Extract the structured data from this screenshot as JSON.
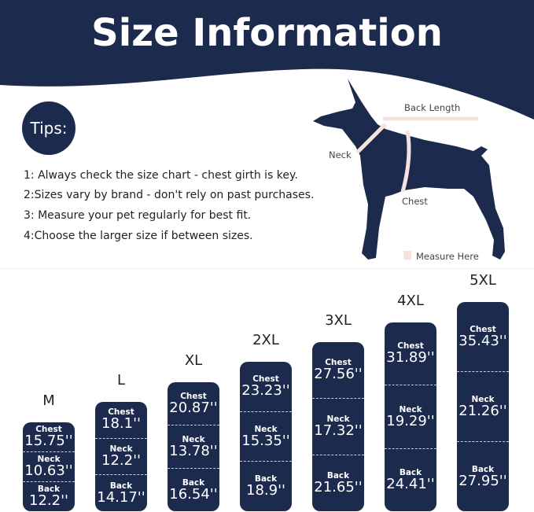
{
  "title": "Size Information",
  "tips": {
    "heading": "Tips:",
    "items": [
      "1: Always check the size chart - chest girth is key.",
      "2:Sizes vary by brand - don't rely on past purchases.",
      "3: Measure your pet regularly for best fit.",
      "4:Choose the larger size if between sizes."
    ]
  },
  "diagram": {
    "back_length": "Back Length",
    "neck": "Neck",
    "chest": "Chest",
    "legend": "Measure Here"
  },
  "colors": {
    "navy": "#1c2a4e",
    "measure": "#f6e2dc"
  },
  "measure_labels": {
    "chest": "Chest",
    "neck": "Neck",
    "back": "Back"
  },
  "sizes": [
    {
      "size": "M",
      "chest": "15.75''",
      "neck": "10.63''",
      "back": "12.2''"
    },
    {
      "size": "L",
      "chest": "18.1''",
      "neck": "12.2''",
      "back": "14.17''"
    },
    {
      "size": "XL",
      "chest": "20.87''",
      "neck": "13.78''",
      "back": "16.54''"
    },
    {
      "size": "2XL",
      "chest": "23.23''",
      "neck": "15.35''",
      "back": "18.9''"
    },
    {
      "size": "3XL",
      "chest": "27.56''",
      "neck": "17.32''",
      "back": "21.65''"
    },
    {
      "size": "4XL",
      "chest": "31.89''",
      "neck": "19.29''",
      "back": "24.41''"
    },
    {
      "size": "5XL",
      "chest": "35.43''",
      "neck": "21.26''",
      "back": "27.95''"
    }
  ]
}
